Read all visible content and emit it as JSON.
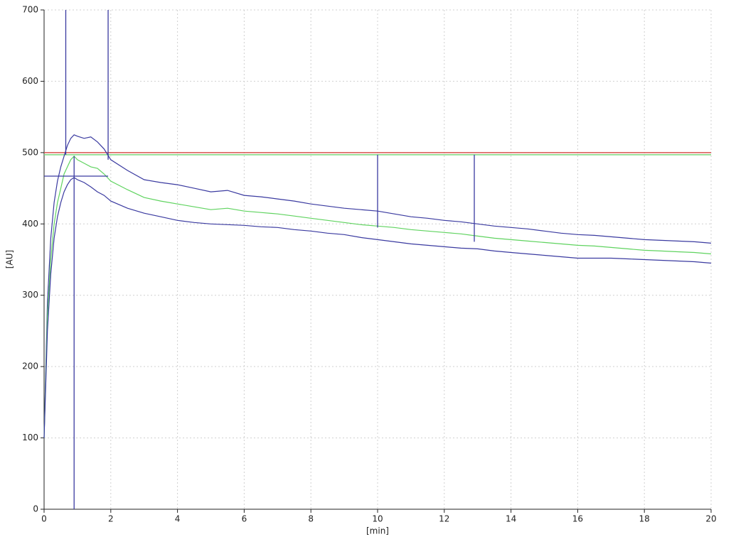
{
  "chart_data": {
    "type": "line",
    "xlabel": "[min]",
    "ylabel": "[AU]",
    "x": [
      0,
      0.1,
      0.2,
      0.3,
      0.4,
      0.5,
      0.6,
      0.7,
      0.8,
      0.9,
      1,
      1.2,
      1.4,
      1.6,
      1.8,
      2,
      2.5,
      3,
      3.5,
      4,
      4.5,
      5,
      5.5,
      6,
      6.5,
      7,
      7.5,
      8,
      8.5,
      9,
      9.5,
      10,
      10.5,
      11,
      11.5,
      12,
      12.5,
      13,
      13.5,
      14,
      14.5,
      15,
      15.5,
      16,
      16.5,
      17,
      17.5,
      18,
      18.5,
      19,
      19.5,
      20
    ],
    "series": [
      {
        "color": "#3a3aa0",
        "values": [
          100,
          290,
          380,
          430,
          460,
          480,
          495,
          510,
          520,
          525,
          523,
          520,
          522,
          515,
          505,
          490,
          475,
          462,
          458,
          455,
          450,
          445,
          447,
          440,
          438,
          435,
          432,
          428,
          425,
          422,
          420,
          418,
          414,
          410,
          408,
          405,
          403,
          400,
          397,
          395,
          393,
          390,
          387,
          385,
          384,
          382,
          380,
          378,
          377,
          376,
          375,
          373
        ]
      },
      {
        "color": "#5fd35f",
        "values": [
          100,
          270,
          350,
          400,
          430,
          450,
          470,
          480,
          490,
          495,
          490,
          485,
          480,
          478,
          470,
          460,
          448,
          437,
          432,
          428,
          424,
          420,
          422,
          418,
          416,
          414,
          411,
          408,
          405,
          402,
          399,
          397,
          395,
          392,
          390,
          388,
          386,
          383,
          380,
          378,
          376,
          374,
          372,
          370,
          369,
          367,
          365,
          363,
          362,
          361,
          360,
          358
        ]
      },
      {
        "color": "#3a3aa0",
        "values": [
          100,
          250,
          330,
          380,
          410,
          430,
          445,
          455,
          462,
          465,
          462,
          458,
          452,
          445,
          440,
          432,
          422,
          415,
          410,
          405,
          402,
          400,
          399,
          398,
          396,
          395,
          392,
          390,
          387,
          385,
          381,
          378,
          375,
          372,
          370,
          368,
          366,
          365,
          362,
          360,
          358,
          356,
          354,
          352,
          352,
          352,
          351,
          350,
          349,
          348,
          347,
          345
        ]
      }
    ],
    "hlines": [
      {
        "y": 500,
        "color": "#d9534f"
      },
      {
        "y": 497,
        "color": "#7cd67c"
      }
    ],
    "vlines": [
      {
        "x": 0.65,
        "y": [
          497,
          700
        ]
      },
      {
        "x": 1.92,
        "y": [
          490,
          700
        ]
      },
      {
        "x": 0.9,
        "y": [
          0,
          495
        ]
      },
      {
        "x": 10,
        "y": [
          395,
          497
        ]
      },
      {
        "x": 12.9,
        "y": [
          375,
          497
        ]
      }
    ],
    "hsegments": [
      {
        "x": [
          0,
          1.92
        ],
        "y": 467
      }
    ],
    "marker_color": "#3a3aa0",
    "xlim": [
      0,
      20
    ],
    "ylim": [
      0,
      700
    ],
    "xticks": [
      0,
      2,
      4,
      6,
      8,
      10,
      12,
      14,
      16,
      18,
      20
    ],
    "yticks": [
      0,
      100,
      200,
      300,
      400,
      500,
      600,
      700
    ],
    "grid": true
  }
}
